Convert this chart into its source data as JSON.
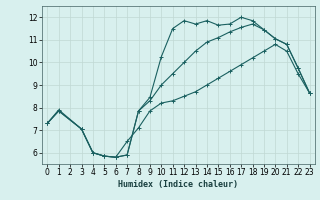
{
  "title": "",
  "xlabel": "Humidex (Indice chaleur)",
  "xlim": [
    -0.5,
    23.5
  ],
  "ylim": [
    5.5,
    12.5
  ],
  "xticks": [
    0,
    1,
    2,
    3,
    4,
    5,
    6,
    7,
    8,
    9,
    10,
    11,
    12,
    13,
    14,
    15,
    16,
    17,
    18,
    19,
    20,
    21,
    22,
    23
  ],
  "yticks": [
    6,
    7,
    8,
    9,
    10,
    11,
    12
  ],
  "bg_color": "#d8f0ee",
  "grid_color": "#c0d8d4",
  "line_color": "#1a6060",
  "line1_x": [
    0,
    1,
    3,
    4,
    5,
    6,
    7,
    8,
    9,
    10,
    11,
    12,
    13,
    14,
    15,
    16,
    17,
    18,
    19,
    20,
    21,
    22,
    23
  ],
  "line1_y": [
    7.3,
    7.9,
    7.05,
    6.0,
    5.85,
    5.8,
    5.9,
    7.85,
    8.45,
    10.25,
    11.5,
    11.85,
    11.7,
    11.85,
    11.65,
    11.7,
    12.0,
    11.85,
    11.45,
    11.05,
    10.8,
    9.75,
    8.65
  ],
  "line2_x": [
    0,
    1,
    3,
    4,
    5,
    6,
    7,
    8,
    9,
    10,
    11,
    12,
    13,
    14,
    15,
    16,
    17,
    18,
    19,
    20,
    21,
    22,
    23
  ],
  "line2_y": [
    7.3,
    7.85,
    7.05,
    6.0,
    5.85,
    5.8,
    6.5,
    7.1,
    7.85,
    8.2,
    8.3,
    8.5,
    8.7,
    9.0,
    9.3,
    9.6,
    9.9,
    10.2,
    10.5,
    10.8,
    10.5,
    9.5,
    8.65
  ],
  "line3_x": [
    0,
    1,
    3,
    4,
    5,
    6,
    7,
    8,
    9,
    10,
    11,
    12,
    13,
    14,
    15,
    16,
    17,
    18,
    19,
    20,
    21,
    22,
    23
  ],
  "line3_y": [
    7.3,
    7.85,
    7.05,
    6.0,
    5.85,
    5.8,
    5.9,
    7.85,
    8.3,
    9.0,
    9.5,
    10.0,
    10.5,
    10.9,
    11.1,
    11.35,
    11.55,
    11.7,
    11.45,
    11.05,
    10.8,
    9.75,
    8.65
  ]
}
